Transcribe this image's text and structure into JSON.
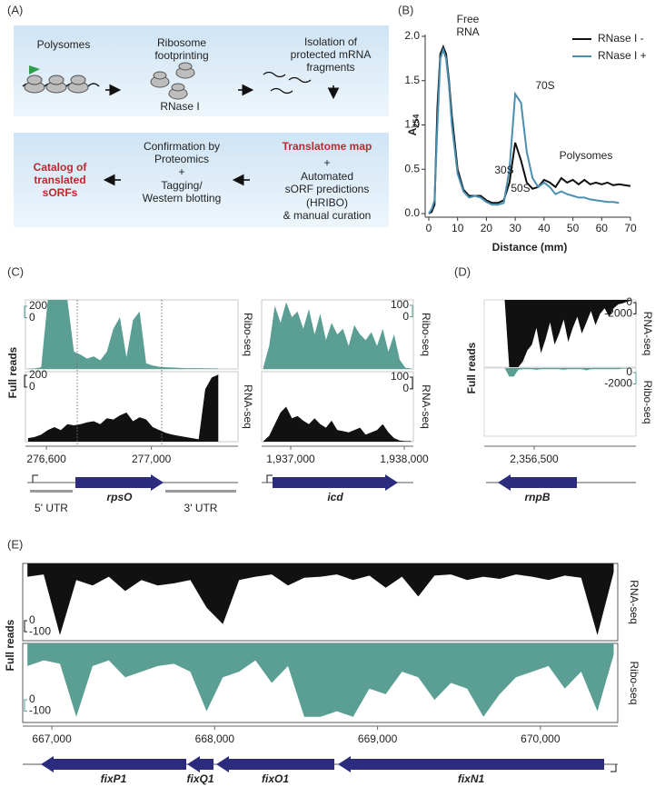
{
  "panel_labels": [
    "(A)",
    "(B)",
    "(C)",
    "(D)",
    "(E)"
  ],
  "workflow": {
    "polysomes": "Polysomes",
    "footprinting": [
      "Ribosome",
      "footprinting"
    ],
    "rnase": "RNase I",
    "isolation": [
      "Isolation of",
      "protected mRNA",
      "fragments"
    ],
    "confirmation": [
      "Confirmation by",
      "Proteomics",
      "+",
      "Tagging/",
      "Western blotting"
    ],
    "translatome": "Translatome map",
    "prediction": [
      "+",
      "Automated",
      "sORF predictions",
      "(HRIBO)",
      "& manual curation"
    ],
    "catalog": [
      "Catalog of",
      "translated",
      "sORFs"
    ]
  },
  "chart_data": [
    {
      "type": "line",
      "xlabel": "Distance (mm)",
      "ylabel": "A",
      "ylabel_subscript": "254",
      "x": [
        0,
        1,
        2,
        3,
        4,
        5,
        6,
        7,
        8,
        10,
        12,
        14,
        16,
        18,
        20,
        22,
        24,
        26,
        28,
        30,
        32,
        34,
        36,
        38,
        40,
        42,
        44,
        46,
        48,
        50,
        52,
        54,
        56,
        58,
        60,
        62,
        64,
        66,
        68,
        70
      ],
      "series": [
        {
          "name": "RNase I -",
          "color": "#111111",
          "values": [
            0.0,
            0.02,
            0.1,
            1.2,
            1.8,
            1.88,
            1.8,
            1.5,
            1.1,
            0.5,
            0.27,
            0.2,
            0.2,
            0.2,
            0.15,
            0.12,
            0.12,
            0.15,
            0.35,
            0.8,
            0.6,
            0.35,
            0.28,
            0.3,
            0.38,
            0.35,
            0.3,
            0.4,
            0.35,
            0.38,
            0.33,
            0.38,
            0.33,
            0.35,
            0.33,
            0.35,
            0.32,
            0.33,
            0.32,
            0.31
          ]
        },
        {
          "name": "RNase I +",
          "color": "#4a8fb0",
          "values": [
            0.0,
            0.05,
            0.15,
            1.0,
            1.75,
            1.85,
            1.75,
            1.45,
            1.0,
            0.45,
            0.25,
            0.18,
            0.2,
            0.18,
            0.13,
            0.1,
            0.1,
            0.12,
            0.5,
            1.35,
            1.25,
            0.7,
            0.4,
            0.3,
            0.35,
            0.3,
            0.22,
            0.25,
            0.22,
            0.2,
            0.18,
            0.18,
            0.16,
            0.15,
            0.14,
            0.13,
            0.13,
            0.12,
            null,
            null
          ]
        }
      ],
      "xlim": [
        0,
        70
      ],
      "xticks": [
        0,
        10,
        20,
        30,
        40,
        50,
        60,
        70
      ],
      "ylim": [
        0,
        2.0
      ],
      "yticks": [
        {
          "value": 0,
          "label": "0.0"
        },
        0.5,
        {
          "value": 1,
          "label": "1.0"
        },
        1.5,
        {
          "value": 2,
          "label": "2.0"
        }
      ],
      "annotations": [
        "Free",
        "RNA",
        "30S",
        "50S",
        "70S",
        "Polysomes"
      ],
      "legend": "top-right"
    },
    {
      "type": "coverage",
      "ylabel": "Full reads",
      "xlim": [
        276520,
        277330
      ],
      "xticks": [
        {
          "value": 276600,
          "label": "276,600"
        },
        {
          "value": 277000,
          "label": "277,000"
        }
      ],
      "x": [
        276530,
        276555,
        276580,
        276605,
        276630,
        276655,
        276680,
        276705,
        276730,
        276755,
        276780,
        276805,
        276830,
        276855,
        276880,
        276905,
        276930,
        276955,
        276980,
        277005,
        277030,
        277055,
        277080,
        277105,
        277130,
        277155,
        277180,
        277205,
        277230,
        277255
      ],
      "tracks": [
        {
          "name": "Ribo-seq",
          "color": "#5a9e94",
          "ylim": [
            0,
            1200
          ],
          "scale": [
            200,
            0
          ],
          "values": [
            5,
            10,
            30,
            1200,
            1200,
            1200,
            1200,
            300,
            250,
            180,
            220,
            150,
            300,
            700,
            900,
            200,
            850,
            1000,
            100,
            60,
            40,
            30,
            25,
            20,
            15,
            15,
            15,
            12,
            10,
            10
          ]
        },
        {
          "name": "RNA-seq",
          "color": "#111111",
          "ylim": [
            0,
            1200
          ],
          "scale": [
            200,
            0
          ],
          "values": [
            60,
            80,
            120,
            200,
            250,
            200,
            300,
            280,
            300,
            330,
            350,
            300,
            400,
            380,
            450,
            500,
            350,
            420,
            380,
            250,
            200,
            150,
            120,
            100,
            80,
            60,
            40,
            900,
            1100,
            1150
          ]
        }
      ],
      "genes": [
        "rpsO"
      ],
      "utr": [
        "5' UTR",
        "3' UTR"
      ]
    },
    {
      "type": "coverage",
      "xlim": [
        1936744,
        1938080
      ],
      "xticks": [
        {
          "value": 1937000,
          "label": "1,937,000"
        },
        {
          "value": 1938000,
          "label": "1,938,000"
        }
      ],
      "x": [
        1936760,
        1936810,
        1936860,
        1936910,
        1936960,
        1937010,
        1937060,
        1937110,
        1937160,
        1937210,
        1937260,
        1937310,
        1937360,
        1937410,
        1937460,
        1937510,
        1937560,
        1937610,
        1937660,
        1937710,
        1937760,
        1937810,
        1937860,
        1937910,
        1937960,
        1938010,
        1938060
      ],
      "tracks": [
        {
          "name": "Ribo-seq",
          "color": "#5a9e94",
          "ylim": [
            0,
            600
          ],
          "scale": [
            100,
            0
          ],
          "values": [
            20,
            200,
            550,
            400,
            580,
            450,
            500,
            350,
            520,
            300,
            480,
            250,
            400,
            300,
            350,
            200,
            380,
            300,
            250,
            320,
            200,
            350,
            150,
            300,
            80,
            10,
            5
          ]
        },
        {
          "name": "RNA-seq",
          "color": "#111111",
          "ylim": [
            0,
            600
          ],
          "scale": [
            100,
            0
          ],
          "values": [
            5,
            50,
            150,
            250,
            300,
            200,
            220,
            180,
            150,
            200,
            150,
            120,
            180,
            100,
            90,
            80,
            100,
            120,
            60,
            80,
            100,
            150,
            80,
            30,
            10,
            5,
            5
          ]
        }
      ],
      "genes": [
        "icd"
      ]
    },
    {
      "type": "coverage",
      "ylabel": "Full reads",
      "xlim": [
        2356060,
        2357396
      ],
      "xticks": [
        {
          "value": 2356500,
          "label": "2,356,500"
        }
      ],
      "x": [
        2356080,
        2356120,
        2356160,
        2356200,
        2356240,
        2356280,
        2356320,
        2356360,
        2356400,
        2356440,
        2356480,
        2356520,
        2356560,
        2356600,
        2356640,
        2356680,
        2356720,
        2356760,
        2356800,
        2356840,
        2356880,
        2356920,
        2356960,
        2357000,
        2357040,
        2357080,
        2357120,
        2357160,
        2357200,
        2357240,
        2357280,
        2357320,
        2357360
      ],
      "tracks": [
        {
          "name": "RNA-seq",
          "color": "#111111",
          "ylim": [
            -12000,
            0
          ],
          "scale": [
            0,
            -2000
          ],
          "values": [
            0,
            0,
            0,
            0,
            0,
            -12000,
            -12000,
            -12000,
            -11000,
            -9000,
            -8000,
            -5000,
            -9500,
            -7000,
            -4000,
            -8000,
            -6000,
            -3500,
            -7500,
            -5000,
            -3000,
            -6000,
            -4000,
            -2000,
            -4500,
            -2500,
            -1500,
            -3000,
            -1500,
            -800,
            -600,
            -300,
            -100
          ]
        },
        {
          "name": "Ribo-seq",
          "color": "#5a9e94",
          "ylim": [
            -12000,
            0
          ],
          "scale": [
            0,
            -2000
          ],
          "values": [
            0,
            0,
            0,
            0,
            0,
            -1500,
            -1500,
            -300,
            -200,
            -200,
            -200,
            -300,
            -200,
            -200,
            -200,
            -200,
            -200,
            -300,
            -200,
            -200,
            -200,
            -200,
            -400,
            -200,
            -200,
            -200,
            -200,
            -200,
            -200,
            -200,
            -100,
            -100,
            0
          ]
        }
      ],
      "genes": [
        "rnpB"
      ]
    },
    {
      "type": "coverage",
      "ylabel": "Full reads",
      "xlim": [
        666821,
        670475
      ],
      "xticks": [
        {
          "value": 667000,
          "label": "667,000"
        },
        {
          "value": 668000,
          "label": "668,000"
        },
        {
          "value": 669000,
          "label": "669,000"
        },
        {
          "value": 670000,
          "label": "670,000"
        }
      ],
      "x": [
        666850,
        666950,
        667050,
        667150,
        667250,
        667350,
        667450,
        667550,
        667650,
        667750,
        667850,
        667950,
        668050,
        668150,
        668250,
        668350,
        668450,
        668550,
        668650,
        668750,
        668850,
        668950,
        669050,
        669150,
        669250,
        669350,
        669450,
        669550,
        669650,
        669750,
        669850,
        669950,
        670050,
        670150,
        670250,
        670350,
        670450
      ],
      "tracks": [
        {
          "name": "RNA-seq",
          "color": "#111111",
          "ylim": [
            -700,
            0
          ],
          "scale": [
            0,
            -100
          ],
          "values": [
            -120,
            -100,
            -650,
            -150,
            -200,
            -120,
            -250,
            -150,
            -200,
            -180,
            -150,
            -400,
            -550,
            -150,
            -120,
            -100,
            -200,
            -130,
            -120,
            -100,
            -150,
            -110,
            -220,
            -120,
            -300,
            -110,
            -100,
            -150,
            -120,
            -140,
            -100,
            -120,
            -150,
            -110,
            -130,
            -650,
            -80
          ]
        },
        {
          "name": "Ribo-seq",
          "color": "#5a9e94",
          "ylim": [
            -700,
            0
          ],
          "scale": [
            0,
            -100
          ],
          "values": [
            -200,
            -150,
            -180,
            -650,
            -200,
            -150,
            -300,
            -250,
            -200,
            -180,
            -250,
            -600,
            -300,
            -250,
            -150,
            -350,
            -200,
            -650,
            -650,
            -600,
            -650,
            -400,
            -450,
            -250,
            -300,
            -500,
            -350,
            -400,
            -650,
            -450,
            -300,
            -250,
            -200,
            -400,
            -250,
            -600,
            -100
          ]
        }
      ],
      "genes": [
        "fixP1",
        "fixQ1",
        "fixO1",
        "fixN1"
      ]
    }
  ]
}
